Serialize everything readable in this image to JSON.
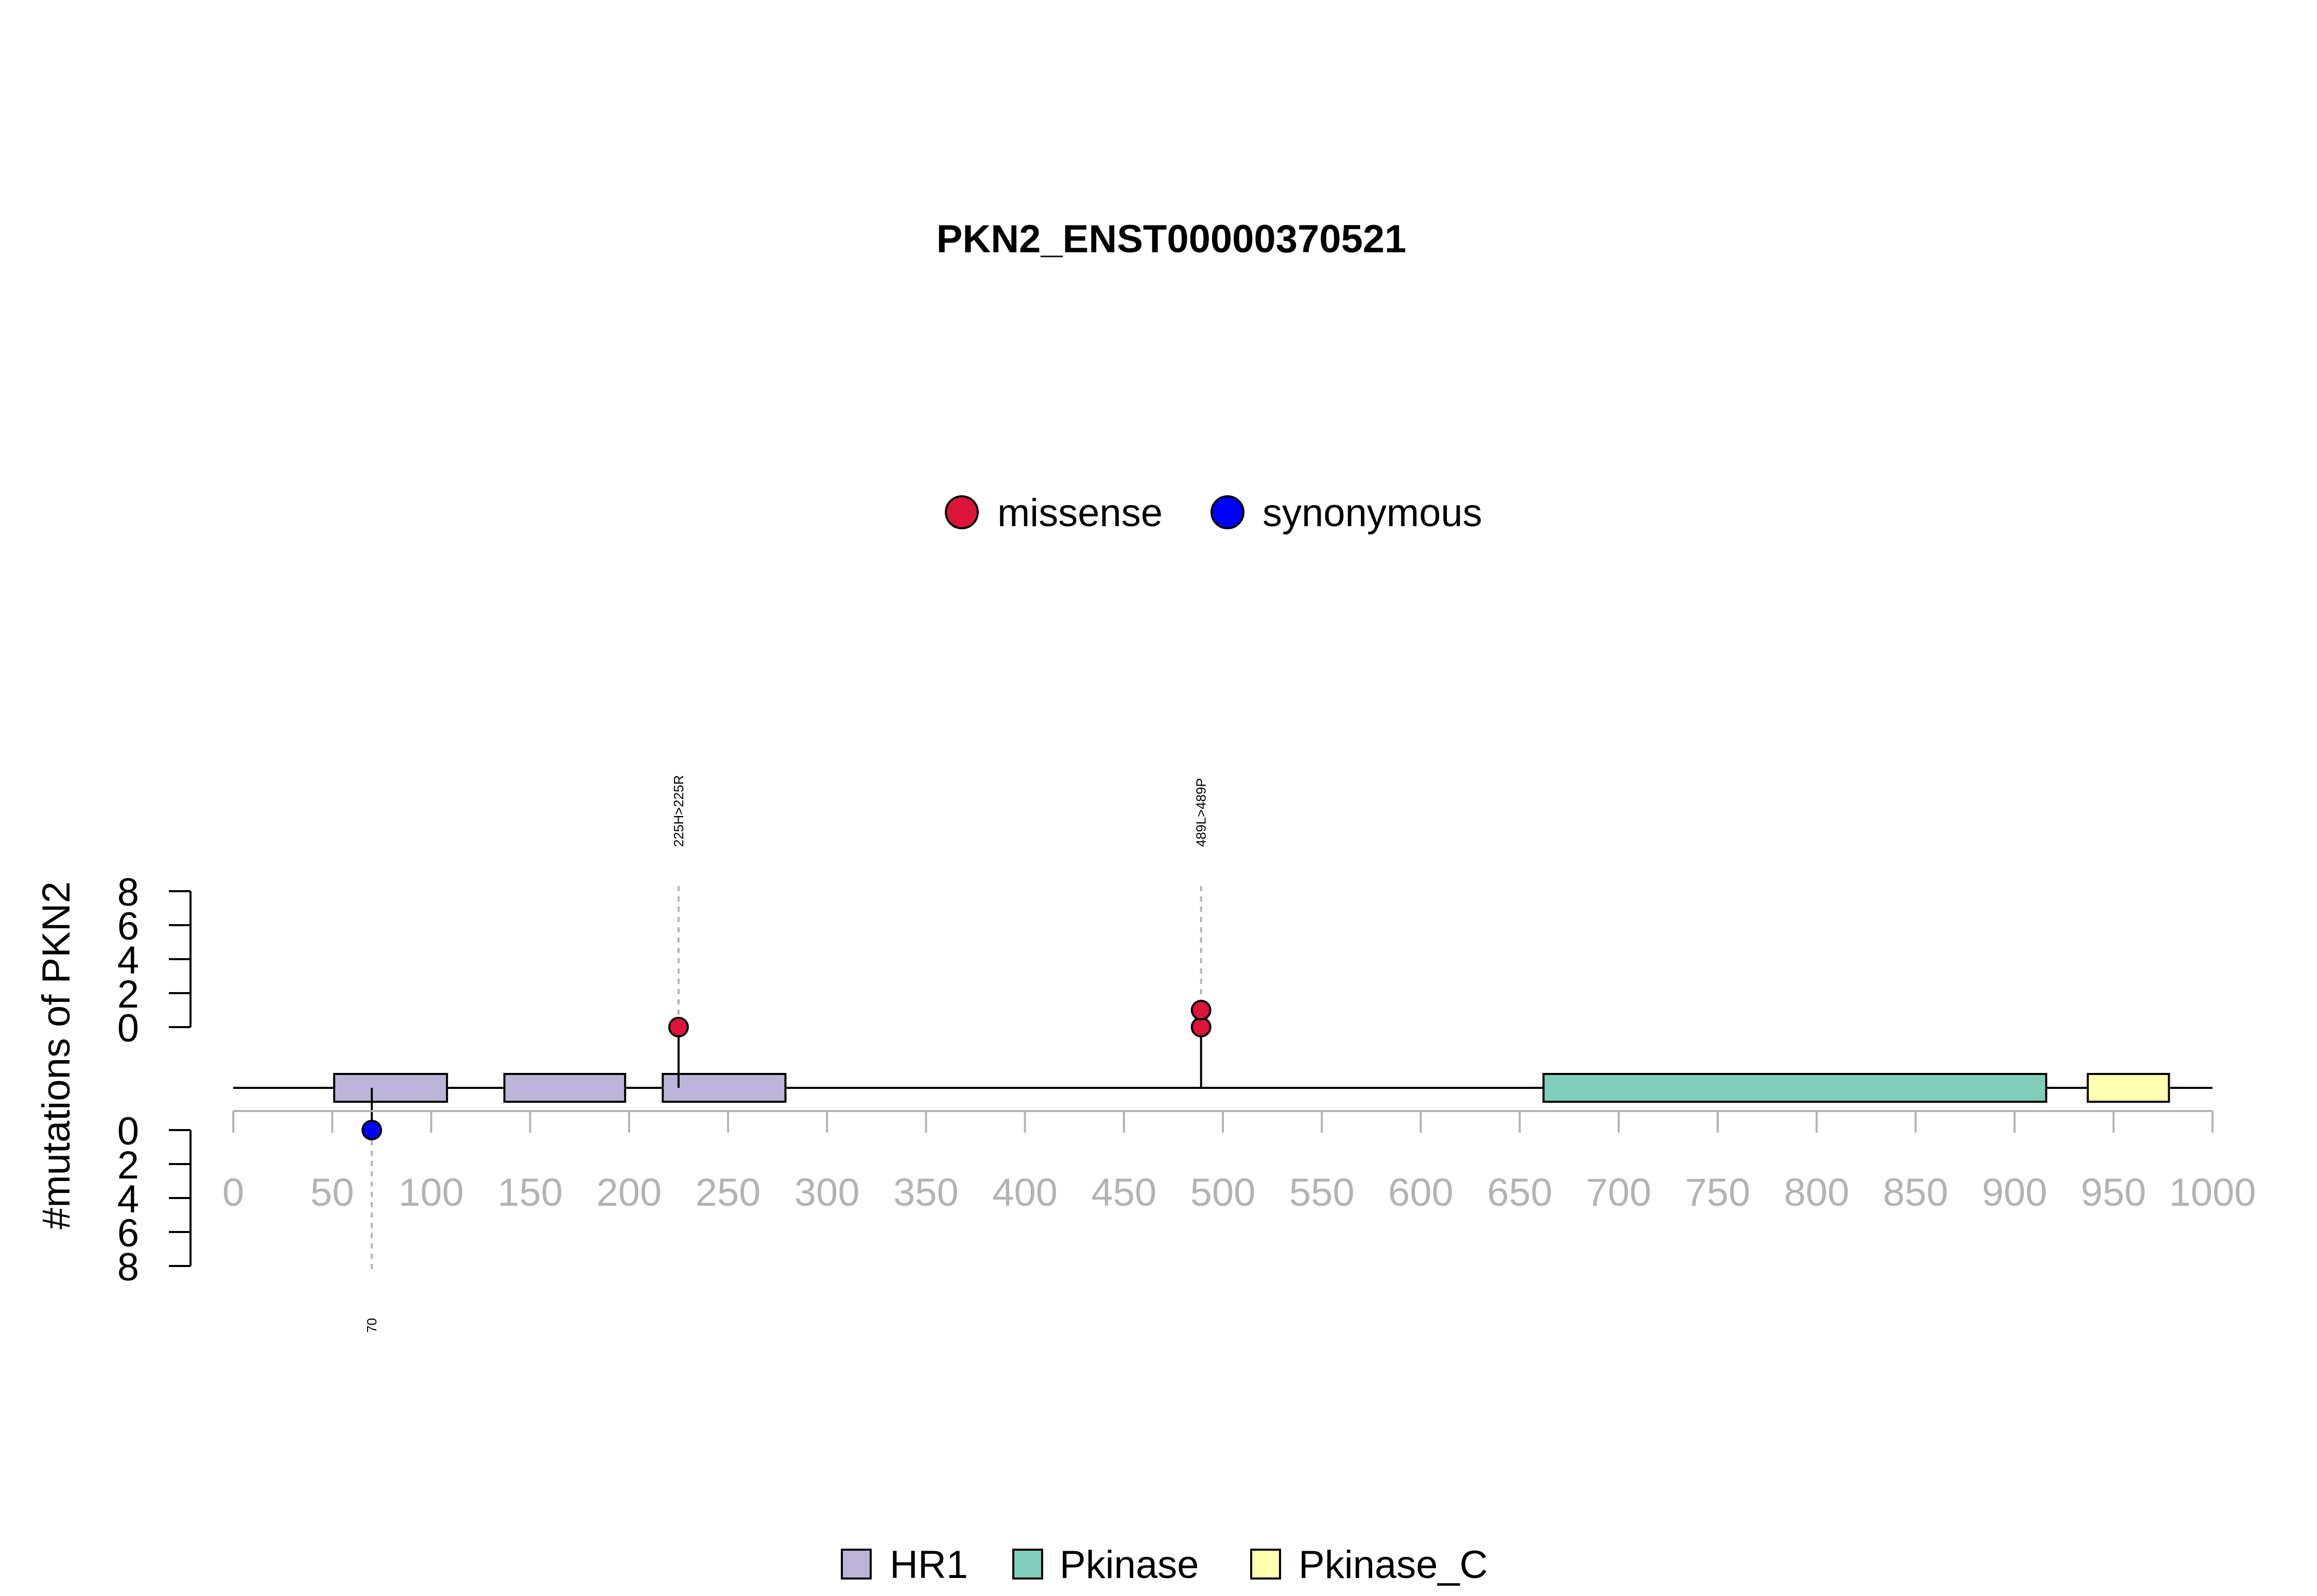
{
  "chart_data": {
    "type": "lollipop",
    "title": "PKN2_ENST00000370521",
    "ylabel": "#mutations of PKN2",
    "xlim": [
      0,
      1000
    ],
    "x_ticks": [
      0,
      50,
      100,
      150,
      200,
      250,
      300,
      350,
      400,
      450,
      500,
      550,
      600,
      650,
      700,
      750,
      800,
      850,
      900,
      950,
      1000
    ],
    "y_ticks_top": [
      0,
      2,
      4,
      6,
      8
    ],
    "y_ticks_bottom": [
      0,
      2,
      4,
      6,
      8
    ],
    "mutation_legend": [
      {
        "label": "missense",
        "color": "#dc143c"
      },
      {
        "label": "synonymous",
        "color": "#0000ff"
      }
    ],
    "domain_legend": [
      {
        "label": "HR1",
        "color": "#bcb5d7"
      },
      {
        "label": "Pkinase",
        "color": "#80cdb9"
      },
      {
        "label": "Pkinase_C",
        "color": "#ffffb0"
      }
    ],
    "domains": [
      {
        "name": "HR1",
        "start": 51,
        "end": 108
      },
      {
        "name": "HR1",
        "start": 137,
        "end": 198
      },
      {
        "name": "HR1",
        "start": 217,
        "end": 279
      },
      {
        "name": "Pkinase",
        "start": 662,
        "end": 916
      },
      {
        "name": "Pkinase_C",
        "start": 937,
        "end": 978
      }
    ],
    "mutations": [
      {
        "position": 225,
        "label": "225H>225R",
        "count": 1,
        "type": "missense",
        "side": "top"
      },
      {
        "position": 489,
        "label": "489L>489P",
        "count": 2,
        "type": "missense",
        "side": "top"
      },
      {
        "position": 70,
        "label": "70",
        "count": 1,
        "type": "synonymous",
        "side": "bottom"
      }
    ]
  }
}
